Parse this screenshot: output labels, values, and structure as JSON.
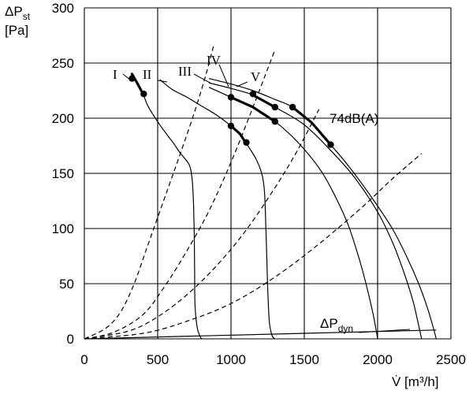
{
  "chart_data": {
    "type": "line",
    "ylabel": {
      "main": "ΔP",
      "sub": "st",
      "unit": "[Pa]"
    },
    "xlabel": "V̇ [m³/h]",
    "xlim": [
      0,
      2500
    ],
    "ylim": [
      0,
      300
    ],
    "x_ticks": [
      0,
      500,
      1000,
      1500,
      2000,
      2500
    ],
    "y_ticks": [
      0,
      50,
      100,
      150,
      200,
      250,
      300
    ],
    "grid": true,
    "series": [
      {
        "name": "I",
        "x": [
          325,
          360,
          400,
          430,
          470,
          520,
          570,
          610,
          645,
          675,
          700,
          718,
          730,
          738,
          745,
          750,
          752,
          755,
          770,
          790,
          800
        ],
        "y": [
          240,
          232,
          222,
          212,
          203,
          193,
          184,
          177,
          170,
          165,
          161,
          157,
          150,
          140,
          120,
          90,
          60,
          30,
          10,
          2,
          0
        ],
        "bold_range": [
          325,
          405
        ],
        "markers": [
          [
            325,
            236
          ],
          [
            405,
            222
          ]
        ]
      },
      {
        "name": "II",
        "x": [
          515,
          600,
          700,
          800,
          900,
          1000,
          1060,
          1100,
          1140,
          1175,
          1200,
          1218,
          1230,
          1238,
          1245,
          1252,
          1262,
          1280,
          1300
        ],
        "y": [
          235,
          226,
          219,
          211,
          203,
          193,
          186,
          178,
          170,
          162,
          154,
          145,
          130,
          100,
          70,
          40,
          15,
          3,
          0
        ],
        "bold_range": [
          1000,
          1105
        ],
        "markers": [
          [
            1000,
            193
          ],
          [
            1105,
            178
          ]
        ]
      },
      {
        "name": "III",
        "x": [
          850,
          1000,
          1150,
          1300,
          1450,
          1600,
          1700,
          1800,
          1880,
          1930,
          1965,
          1990,
          2000
        ],
        "y": [
          228,
          219,
          210,
          197,
          179,
          155,
          132,
          103,
          70,
          45,
          25,
          8,
          0
        ],
        "bold_range": [
          1000,
          1300
        ],
        "markers": [
          [
            1000,
            219
          ],
          [
            1300,
            197
          ]
        ]
      },
      {
        "name": "IV",
        "x": [
          850,
          1000,
          1150,
          1300,
          1500,
          1700,
          1850,
          2000,
          2100,
          2180,
          2240,
          2275,
          2300
        ],
        "y": [
          232,
          227,
          221,
          210,
          194,
          168,
          145,
          115,
          88,
          60,
          35,
          15,
          0
        ],
        "bold_range": [
          1150,
          1300
        ],
        "markers": [
          [
            1150,
            222
          ],
          [
            1300,
            210
          ]
        ]
      },
      {
        "name": "V",
        "x": [
          850,
          1000,
          1150,
          1300,
          1420,
          1550,
          1680,
          1800,
          1950,
          2100,
          2200,
          2280,
          2340,
          2380,
          2400
        ],
        "y": [
          236,
          231,
          225,
          217,
          210,
          196,
          176,
          157,
          130,
          100,
          74,
          50,
          28,
          10,
          0
        ],
        "bold_range": [
          1420,
          1680
        ],
        "markers": [
          [
            1420,
            210
          ],
          [
            1680,
            176
          ]
        ]
      }
    ],
    "system_curves": [
      {
        "x": [
          0,
          150,
          250,
          340,
          420,
          500,
          580,
          660,
          750,
          830,
          880
        ],
        "y": [
          0,
          10,
          25,
          50,
          80,
          110,
          140,
          170,
          205,
          240,
          265
        ]
      },
      {
        "x": [
          0,
          200,
          400,
          550,
          700,
          850,
          1000,
          1150,
          1300
        ],
        "y": [
          0,
          6,
          22,
          48,
          80,
          116,
          160,
          210,
          262
        ]
      },
      {
        "x": [
          0,
          300,
          500,
          700,
          900,
          1100,
          1300,
          1450,
          1600
        ],
        "y": [
          0,
          7,
          20,
          40,
          66,
          98,
          137,
          170,
          208
        ]
      },
      {
        "x": [
          0,
          400,
          700,
          1000,
          1300,
          1600,
          1900,
          2100,
          2300
        ],
        "y": [
          0,
          5,
          16,
          32,
          56,
          86,
          120,
          145,
          168
        ]
      }
    ],
    "dynamic_pressure_line": {
      "x": [
        0,
        2400
      ],
      "y": [
        0,
        8
      ]
    },
    "annotations": {
      "noise": "74dB(A)",
      "dyn_main": "ΔP",
      "dyn_sub": "dyn"
    }
  }
}
